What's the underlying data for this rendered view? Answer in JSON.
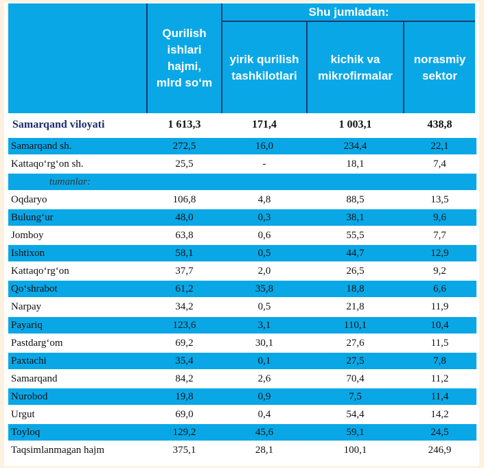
{
  "header": {
    "group_label": "Shu jumladan:",
    "col_total": "Qurilish\nishlari\nhajmi,\nmlrd so‘m",
    "col_large": "yirik qurilish\ntashkilotlari",
    "col_small": "kichik va\nmikrofirmalar",
    "col_informal": "norasmiy\nsektor"
  },
  "total_row": {
    "name": "Samarqand viloyati",
    "total": "1 613,3",
    "large": "171,4",
    "small": "1 003,1",
    "informal": "438,8"
  },
  "rows": [
    {
      "name": "Samarqand sh.",
      "total": "272,5",
      "large": "16,0",
      "small": "234,4",
      "informal": "22,1"
    },
    {
      "name": "Kattaqo‘rg‘on sh.",
      "total": "25,5",
      "large": "-",
      "small": "18,1",
      "informal": "7,4"
    },
    {
      "name": "tumanlar:",
      "total": "",
      "large": "",
      "small": "",
      "informal": ""
    },
    {
      "name": "Oqdaryo",
      "total": "106,8",
      "large": "4,8",
      "small": "88,5",
      "informal": "13,5"
    },
    {
      "name": "Bulung‘ur",
      "total": "48,0",
      "large": "0,3",
      "small": "38,1",
      "informal": "9,6"
    },
    {
      "name": "Jomboy",
      "total": "63,8",
      "large": "0,6",
      "small": "55,5",
      "informal": "7,7"
    },
    {
      "name": "Ishtixon",
      "total": "58,1",
      "large": "0,5",
      "small": "44,7",
      "informal": "12,9"
    },
    {
      "name": "Kattaqo‘rg‘on",
      "total": "37,7",
      "large": "2,0",
      "small": "26,5",
      "informal": "9,2"
    },
    {
      "name": "Qo‘shrabot",
      "total": "61,2",
      "large": "35,8",
      "small": "18,8",
      "informal": "6,6"
    },
    {
      "name": "Narpay",
      "total": "34,2",
      "large": "0,5",
      "small": "21,8",
      "informal": "11,9"
    },
    {
      "name": "Payariq",
      "total": "123,6",
      "large": "3,1",
      "small": "110,1",
      "informal": "10,4"
    },
    {
      "name": "Pastdarg‘om",
      "total": "69,2",
      "large": "30,1",
      "small": "27,6",
      "informal": "11,5"
    },
    {
      "name": "Paxtachi",
      "total": "35,4",
      "large": "0,1",
      "small": "27,5",
      "informal": "7,8"
    },
    {
      "name": "Samarqand",
      "total": "84,2",
      "large": "2,6",
      "small": "70,4",
      "informal": "11,2"
    },
    {
      "name": "Nurobod",
      "total": "19,8",
      "large": "0,9",
      "small": "7,5",
      "informal": "11,4"
    },
    {
      "name": "Urgut",
      "total": "69,0",
      "large": "0,4",
      "small": "54,4",
      "informal": "14,2"
    },
    {
      "name": "Toyloq",
      "total": "129,2",
      "large": "45,6",
      "small": "59,1",
      "informal": "24,5"
    },
    {
      "name": "Taqsimlanmagan hajm",
      "total": "375,1",
      "large": "28,1",
      "small": "100,1",
      "informal": "246,9"
    }
  ],
  "colors": {
    "header_bg": "#0aa7e6",
    "row_stripe": "#0aa7e6",
    "title_text": "#1a2c6b"
  }
}
